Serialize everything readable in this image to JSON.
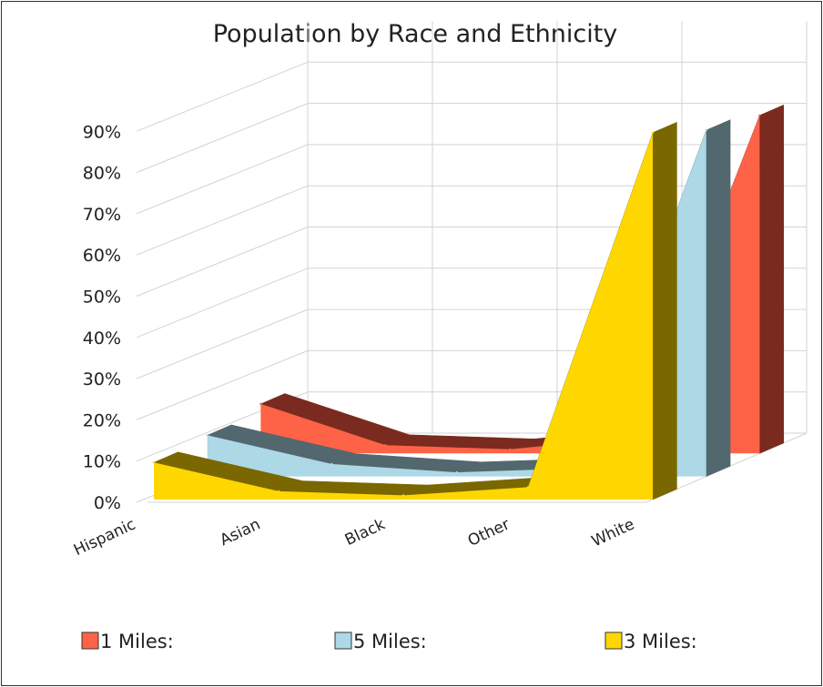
{
  "chart_data": {
    "type": "area",
    "title": "Population by Race and Ethnicity",
    "xlabel": "",
    "ylabel": "",
    "categories": [
      "Hispanic",
      "Asian",
      "Black",
      "Other",
      "White"
    ],
    "y_tick_labels": [
      "0%",
      "10%",
      "20%",
      "30%",
      "40%",
      "50%",
      "60%",
      "70%",
      "80%",
      "90%"
    ],
    "ylim": [
      0,
      90
    ],
    "grid": true,
    "style": "3d",
    "legend_position": "bottom",
    "series": [
      {
        "name": "1 Miles:",
        "values": [
          12,
          2,
          1,
          4,
          82
        ],
        "color": "#ff6347",
        "side_color": "#7a2a1e"
      },
      {
        "name": "5 Miles:",
        "values": [
          10,
          3,
          1,
          2,
          84
        ],
        "color": "#add8e6",
        "side_color": "#53676e"
      },
      {
        "name": "3 Miles:",
        "values": [
          9,
          2,
          1,
          3,
          89
        ],
        "color": "#ffd700",
        "side_color": "#7a6700"
      }
    ]
  }
}
